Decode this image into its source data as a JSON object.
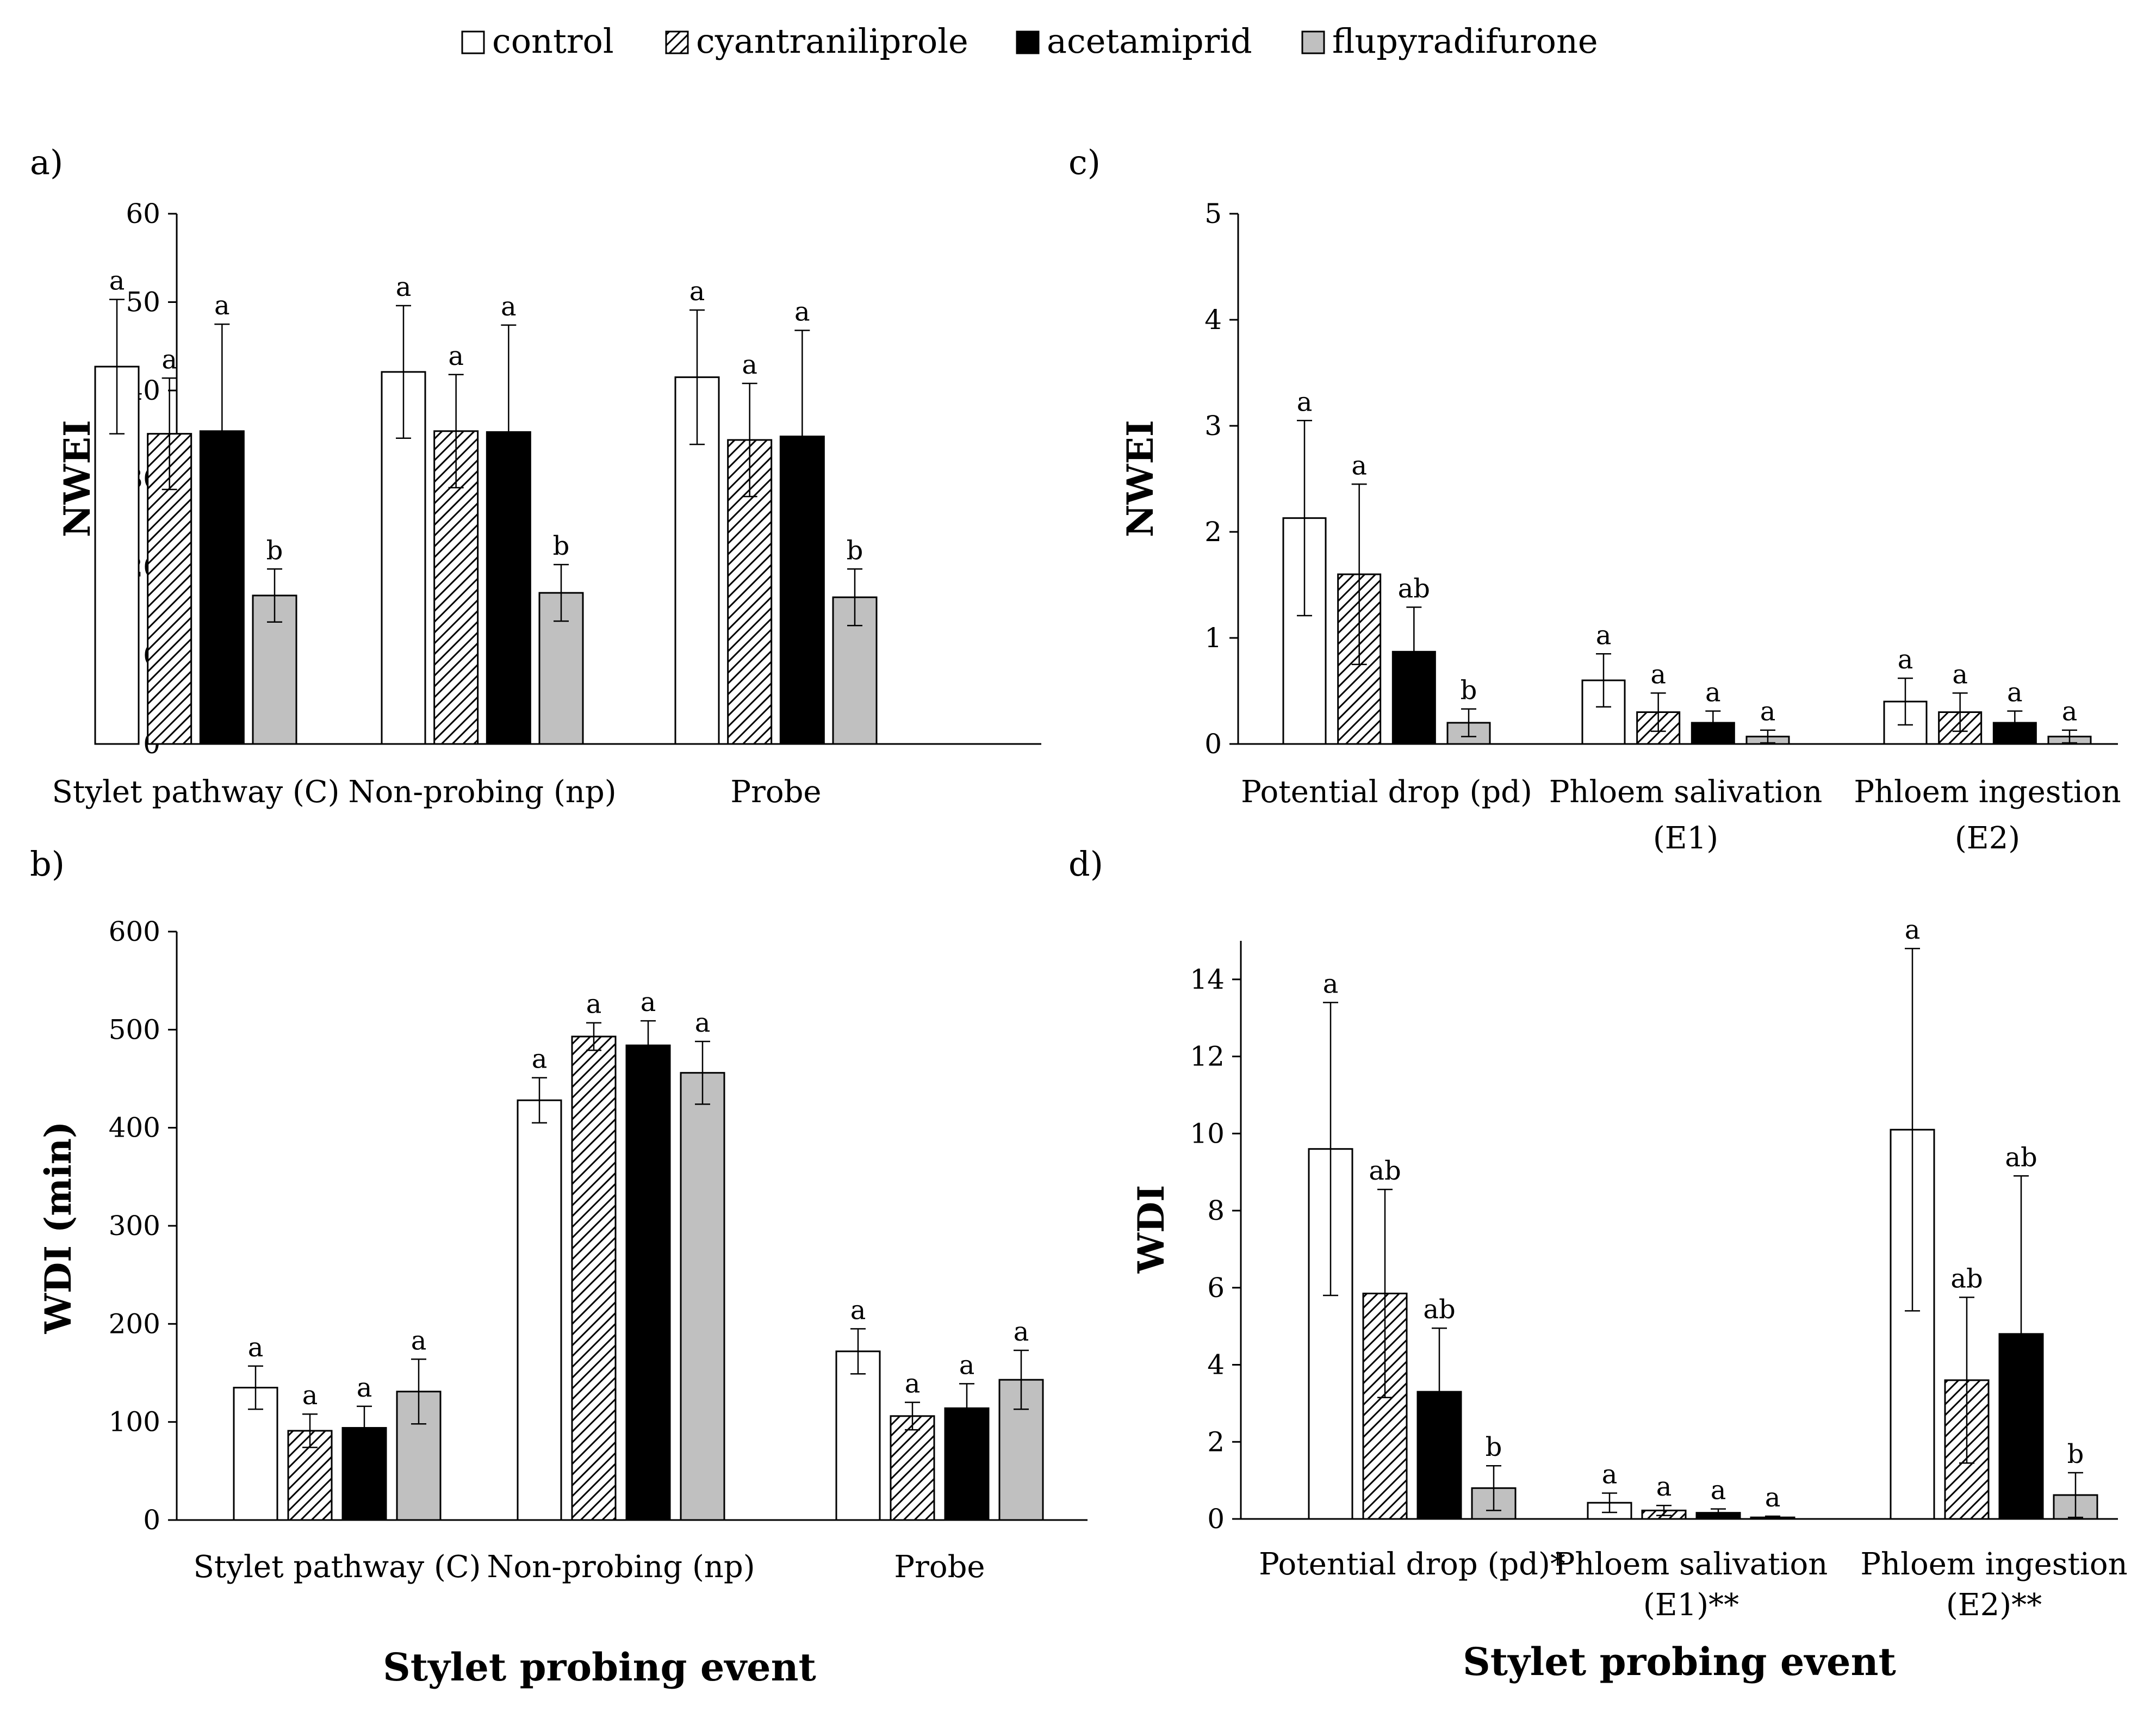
{
  "legend": [
    {
      "name": "control",
      "pattern": "white"
    },
    {
      "name": "cyantraniliprole",
      "pattern": "hatch"
    },
    {
      "name": "acetamiprid",
      "pattern": "black"
    },
    {
      "name": "flupyradifurone",
      "pattern": "gray"
    }
  ],
  "colors": {
    "control": "#ffffff",
    "acetamiprid": "#000000",
    "flupyradifurone": "#c0c0c0",
    "axis": "#000000"
  },
  "chart_data": [
    {
      "type": "bar",
      "panel_label": "a)",
      "ylabel": "NWEI",
      "xlabel": "",
      "ylim": [
        0,
        60
      ],
      "yticks": [
        0,
        10,
        20,
        30,
        40,
        50,
        60
      ],
      "categories": [
        [
          "Stylet pathway (C)"
        ],
        [
          "Non-probing (np)"
        ],
        [
          "Probe"
        ]
      ],
      "series": [
        {
          "name": "control",
          "values": [
            42.7,
            42.1,
            41.5
          ],
          "errors": [
            7.6,
            7.5,
            7.6
          ],
          "letters": [
            "a",
            "a",
            "a"
          ]
        },
        {
          "name": "cyantraniliprole",
          "values": [
            35.1,
            35.4,
            34.4
          ],
          "errors": [
            6.3,
            6.4,
            6.4
          ],
          "letters": [
            "a",
            "a",
            "a"
          ]
        },
        {
          "name": "acetamiprid",
          "values": [
            35.4,
            35.3,
            34.8
          ],
          "errors": [
            12.1,
            12.1,
            12.0
          ],
          "letters": [
            "a",
            "a",
            "a"
          ]
        },
        {
          "name": "flupyradifurone",
          "values": [
            16.8,
            17.1,
            16.6
          ],
          "errors": [
            3.0,
            3.2,
            3.2
          ],
          "letters": [
            "b",
            "b",
            "b"
          ]
        }
      ]
    },
    {
      "type": "bar",
      "panel_label": "c)",
      "ylabel": "NWEI",
      "xlabel": "",
      "ylim": [
        0,
        5
      ],
      "yticks": [
        0,
        1,
        2,
        3,
        4,
        5
      ],
      "categories": [
        [
          "Potential drop (pd)"
        ],
        [
          "Phloem salivation",
          "(E1)"
        ],
        [
          "Phloem ingestion",
          "(E2)"
        ]
      ],
      "series": [
        {
          "name": "control",
          "values": [
            2.13,
            0.6,
            0.4
          ],
          "errors": [
            0.92,
            0.25,
            0.22
          ],
          "letters": [
            "a",
            "a",
            "a"
          ]
        },
        {
          "name": "cyantraniliprole",
          "values": [
            1.6,
            0.3,
            0.3
          ],
          "errors": [
            0.85,
            0.18,
            0.18
          ],
          "letters": [
            "a",
            "a",
            "a"
          ]
        },
        {
          "name": "acetamiprid",
          "values": [
            0.87,
            0.2,
            0.2
          ],
          "errors": [
            0.42,
            0.11,
            0.11
          ],
          "letters": [
            "ab",
            "a",
            "a"
          ]
        },
        {
          "name": "flupyradifurone",
          "values": [
            0.2,
            0.07,
            0.07
          ],
          "errors": [
            0.13,
            0.06,
            0.06
          ],
          "letters": [
            "b",
            "a",
            "a"
          ]
        }
      ]
    },
    {
      "type": "bar",
      "panel_label": "b)",
      "ylabel": "WDI (min)",
      "xlabel": "Stylet probing event",
      "ylim": [
        0,
        600
      ],
      "yticks": [
        0,
        100,
        200,
        300,
        400,
        500,
        600
      ],
      "categories": [
        [
          "Stylet pathway (C)"
        ],
        [
          "Non-probing (np)"
        ],
        [
          "Probe"
        ]
      ],
      "series": [
        {
          "name": "control",
          "values": [
            135,
            428,
            172
          ],
          "errors": [
            22,
            23,
            23
          ],
          "letters": [
            "a",
            "a",
            "a"
          ]
        },
        {
          "name": "cyantraniliprole",
          "values": [
            91,
            493,
            106
          ],
          "errors": [
            17,
            14,
            14
          ],
          "letters": [
            "a",
            "a",
            "a"
          ]
        },
        {
          "name": "acetamiprid",
          "values": [
            94,
            484,
            114
          ],
          "errors": [
            22,
            25,
            25
          ],
          "letters": [
            "a",
            "a",
            "a"
          ]
        },
        {
          "name": "flupyradifurone",
          "values": [
            131,
            456,
            143
          ],
          "errors": [
            33,
            32,
            30
          ],
          "letters": [
            "a",
            "a",
            "a"
          ]
        }
      ]
    },
    {
      "type": "bar",
      "panel_label": "d)",
      "ylabel": "WDI",
      "xlabel": "Stylet probing event",
      "ylim": [
        0,
        15
      ],
      "yticks": [
        0,
        2,
        4,
        6,
        8,
        10,
        12,
        14
      ],
      "categories": [
        [
          "Potential drop (pd)*"
        ],
        [
          "Phloem salivation",
          "(E1)**"
        ],
        [
          "Phloem ingestion",
          "(E2)**"
        ]
      ],
      "series": [
        {
          "name": "control",
          "values": [
            9.6,
            0.42,
            10.1
          ],
          "errors": [
            3.8,
            0.25,
            4.7
          ],
          "letters": [
            "a",
            "a",
            "a"
          ]
        },
        {
          "name": "cyantraniliprole",
          "values": [
            5.85,
            0.22,
            3.6
          ],
          "errors": [
            2.7,
            0.13,
            2.15
          ],
          "letters": [
            "ab",
            "a",
            "ab"
          ]
        },
        {
          "name": "acetamiprid",
          "values": [
            3.3,
            0.16,
            4.8
          ],
          "errors": [
            1.65,
            0.1,
            4.1
          ],
          "letters": [
            "ab",
            "a",
            "ab"
          ]
        },
        {
          "name": "flupyradifurone",
          "values": [
            0.8,
            0.04,
            0.62
          ],
          "errors": [
            0.58,
            0.03,
            0.58
          ],
          "letters": [
            "b",
            "a",
            "b"
          ]
        }
      ]
    }
  ]
}
